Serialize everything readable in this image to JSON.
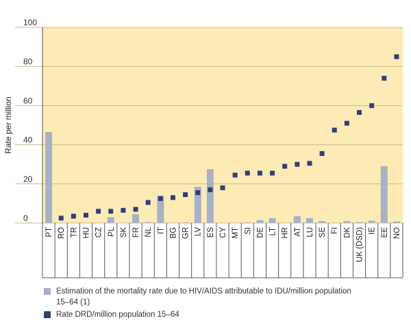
{
  "chart_data": {
    "type": "bar",
    "ylabel": "Rate per million",
    "ylim": [
      0,
      100
    ],
    "yticks": [
      0,
      20,
      40,
      60,
      80,
      100
    ],
    "grid": true,
    "legend_position": "bottom",
    "colors": {
      "background": "#fdebb5",
      "grid": "#c8b88a",
      "bar": "#a7b1c8",
      "marker": "#2e3f7a"
    },
    "categories": [
      "PT",
      "RO",
      "TR",
      "HU",
      "CZ",
      "PL",
      "SK",
      "FR",
      "NL",
      "IT",
      "BG",
      "GR",
      "LV",
      "ES",
      "CY",
      "MT",
      "SI",
      "DE",
      "LT",
      "HR",
      "AT",
      "LU",
      "SE",
      "FI",
      "DK",
      "UK (DSD)",
      "IE",
      "EE",
      "NO"
    ],
    "series": [
      {
        "name": "Estimation of the mortality rate due to HIV/AIDS attributable to IDU/million population 15–64 (1)",
        "kind": "bar",
        "values": [
          46.5,
          0,
          0,
          0,
          0,
          3,
          0,
          4.5,
          0.5,
          14,
          0,
          0.3,
          18.5,
          27.5,
          0,
          0,
          0.3,
          1.5,
          2.5,
          0,
          3.5,
          2.5,
          1,
          0,
          1,
          0.5,
          1.2,
          29,
          0.8
        ]
      },
      {
        "name": "Rate DRD/million population 15–64",
        "kind": "marker",
        "values": [
          null,
          2.5,
          3.5,
          4,
          6,
          6,
          6.5,
          7,
          10.5,
          12.5,
          13,
          14.5,
          15.5,
          17,
          18,
          24.5,
          25.5,
          25.5,
          25.5,
          29,
          30,
          30.5,
          35.5,
          47.5,
          51,
          56.5,
          60,
          74,
          85
        ]
      }
    ]
  }
}
